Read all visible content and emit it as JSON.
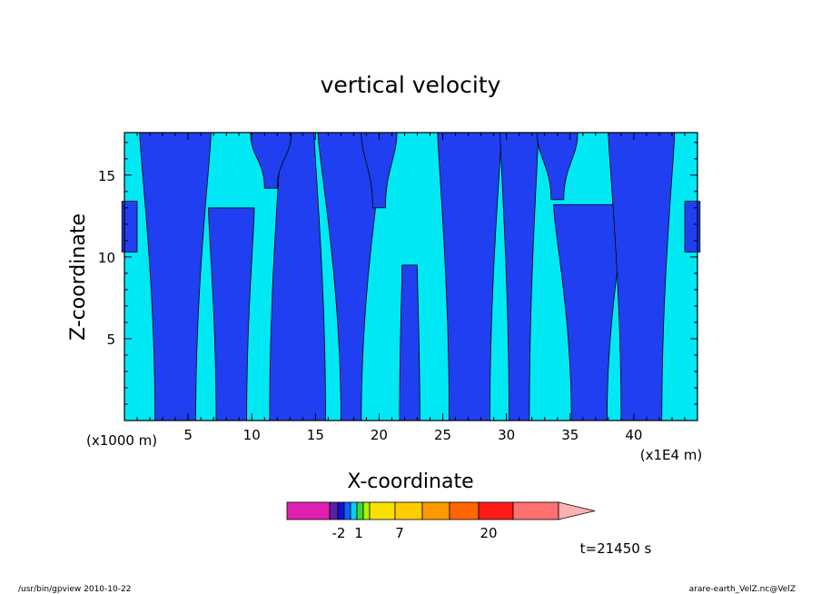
{
  "chart_data": {
    "type": "heatmap",
    "title": "vertical velocity",
    "xlabel": "X-coordinate",
    "ylabel": "Z-coordinate",
    "x_unit_left": "(x1000 m)",
    "x_unit_right": "(x1E4 m)",
    "xlim": [
      0,
      45
    ],
    "ylim": [
      0,
      17.6
    ],
    "xticks": [
      5,
      10,
      15,
      20,
      25,
      30,
      35,
      40
    ],
    "yticks": [
      5,
      10,
      15
    ],
    "field": {
      "description_levels": "cyan = slight downward / near zero (-1..0), blue = weak updraft (0..1)",
      "colors": {
        "cyan": "#00e8f4",
        "blue": "#1f3ff0"
      }
    },
    "colorbar": {
      "colors": [
        "#e020b0",
        "#5a20a8",
        "#1010d0",
        "#1060ff",
        "#00d0ff",
        "#30e030",
        "#b0f000",
        "#f8e000",
        "#ffcc00",
        "#ff9900",
        "#ff6600",
        "#ff1a1a",
        "#ff7070",
        "#ffb0b0"
      ],
      "tick_labels": [
        "-2",
        "1",
        "7",
        "20"
      ]
    },
    "time_label": "t=21450 s"
  },
  "footer": {
    "left": "/usr/bin/gpview   2010-10-22",
    "right": "arare-earth_VelZ.nc@VelZ"
  }
}
